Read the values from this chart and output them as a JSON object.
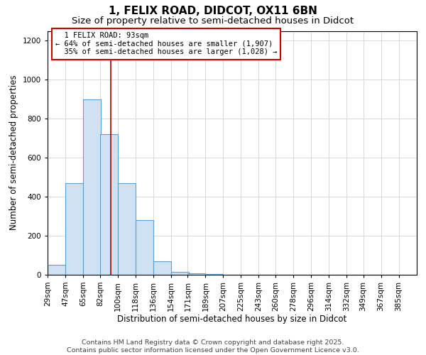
{
  "title": "1, FELIX ROAD, DIDCOT, OX11 6BN",
  "subtitle": "Size of property relative to semi-detached houses in Didcot",
  "xlabel": "Distribution of semi-detached houses by size in Didcot",
  "ylabel": "Number of semi-detached properties",
  "bin_labels": [
    "29sqm",
    "47sqm",
    "65sqm",
    "82sqm",
    "100sqm",
    "118sqm",
    "136sqm",
    "154sqm",
    "171sqm",
    "189sqm",
    "207sqm",
    "225sqm",
    "243sqm",
    "260sqm",
    "278sqm",
    "296sqm",
    "314sqm",
    "332sqm",
    "349sqm",
    "367sqm",
    "385sqm"
  ],
  "bin_edges": [
    29,
    47,
    65,
    82,
    100,
    118,
    136,
    154,
    171,
    189,
    207,
    225,
    243,
    260,
    278,
    296,
    314,
    332,
    349,
    367,
    385
  ],
  "bar_heights": [
    50,
    470,
    900,
    720,
    470,
    280,
    70,
    15,
    5,
    2,
    0,
    0,
    0,
    0,
    0,
    0,
    0,
    0,
    0,
    0
  ],
  "bar_color": "#cfe2f3",
  "bar_edge_color": "#5a9fd4",
  "property_size": 93,
  "property_label": "1 FELIX ROAD: 93sqm",
  "pct_smaller": 64,
  "pct_larger": 35,
  "n_smaller": 1907,
  "n_larger": 1028,
  "vline_color": "#aa0000",
  "annotation_box_color": "#cc0000",
  "grid_color": "#d8d8d8",
  "footer_line1": "Contains HM Land Registry data © Crown copyright and database right 2025.",
  "footer_line2": "Contains public sector information licensed under the Open Government Licence v3.0.",
  "ylim": [
    0,
    1250
  ],
  "title_fontsize": 11,
  "subtitle_fontsize": 9.5,
  "axis_label_fontsize": 8.5,
  "tick_fontsize": 7.5,
  "footer_fontsize": 6.8,
  "annotation_fontsize": 7.5
}
